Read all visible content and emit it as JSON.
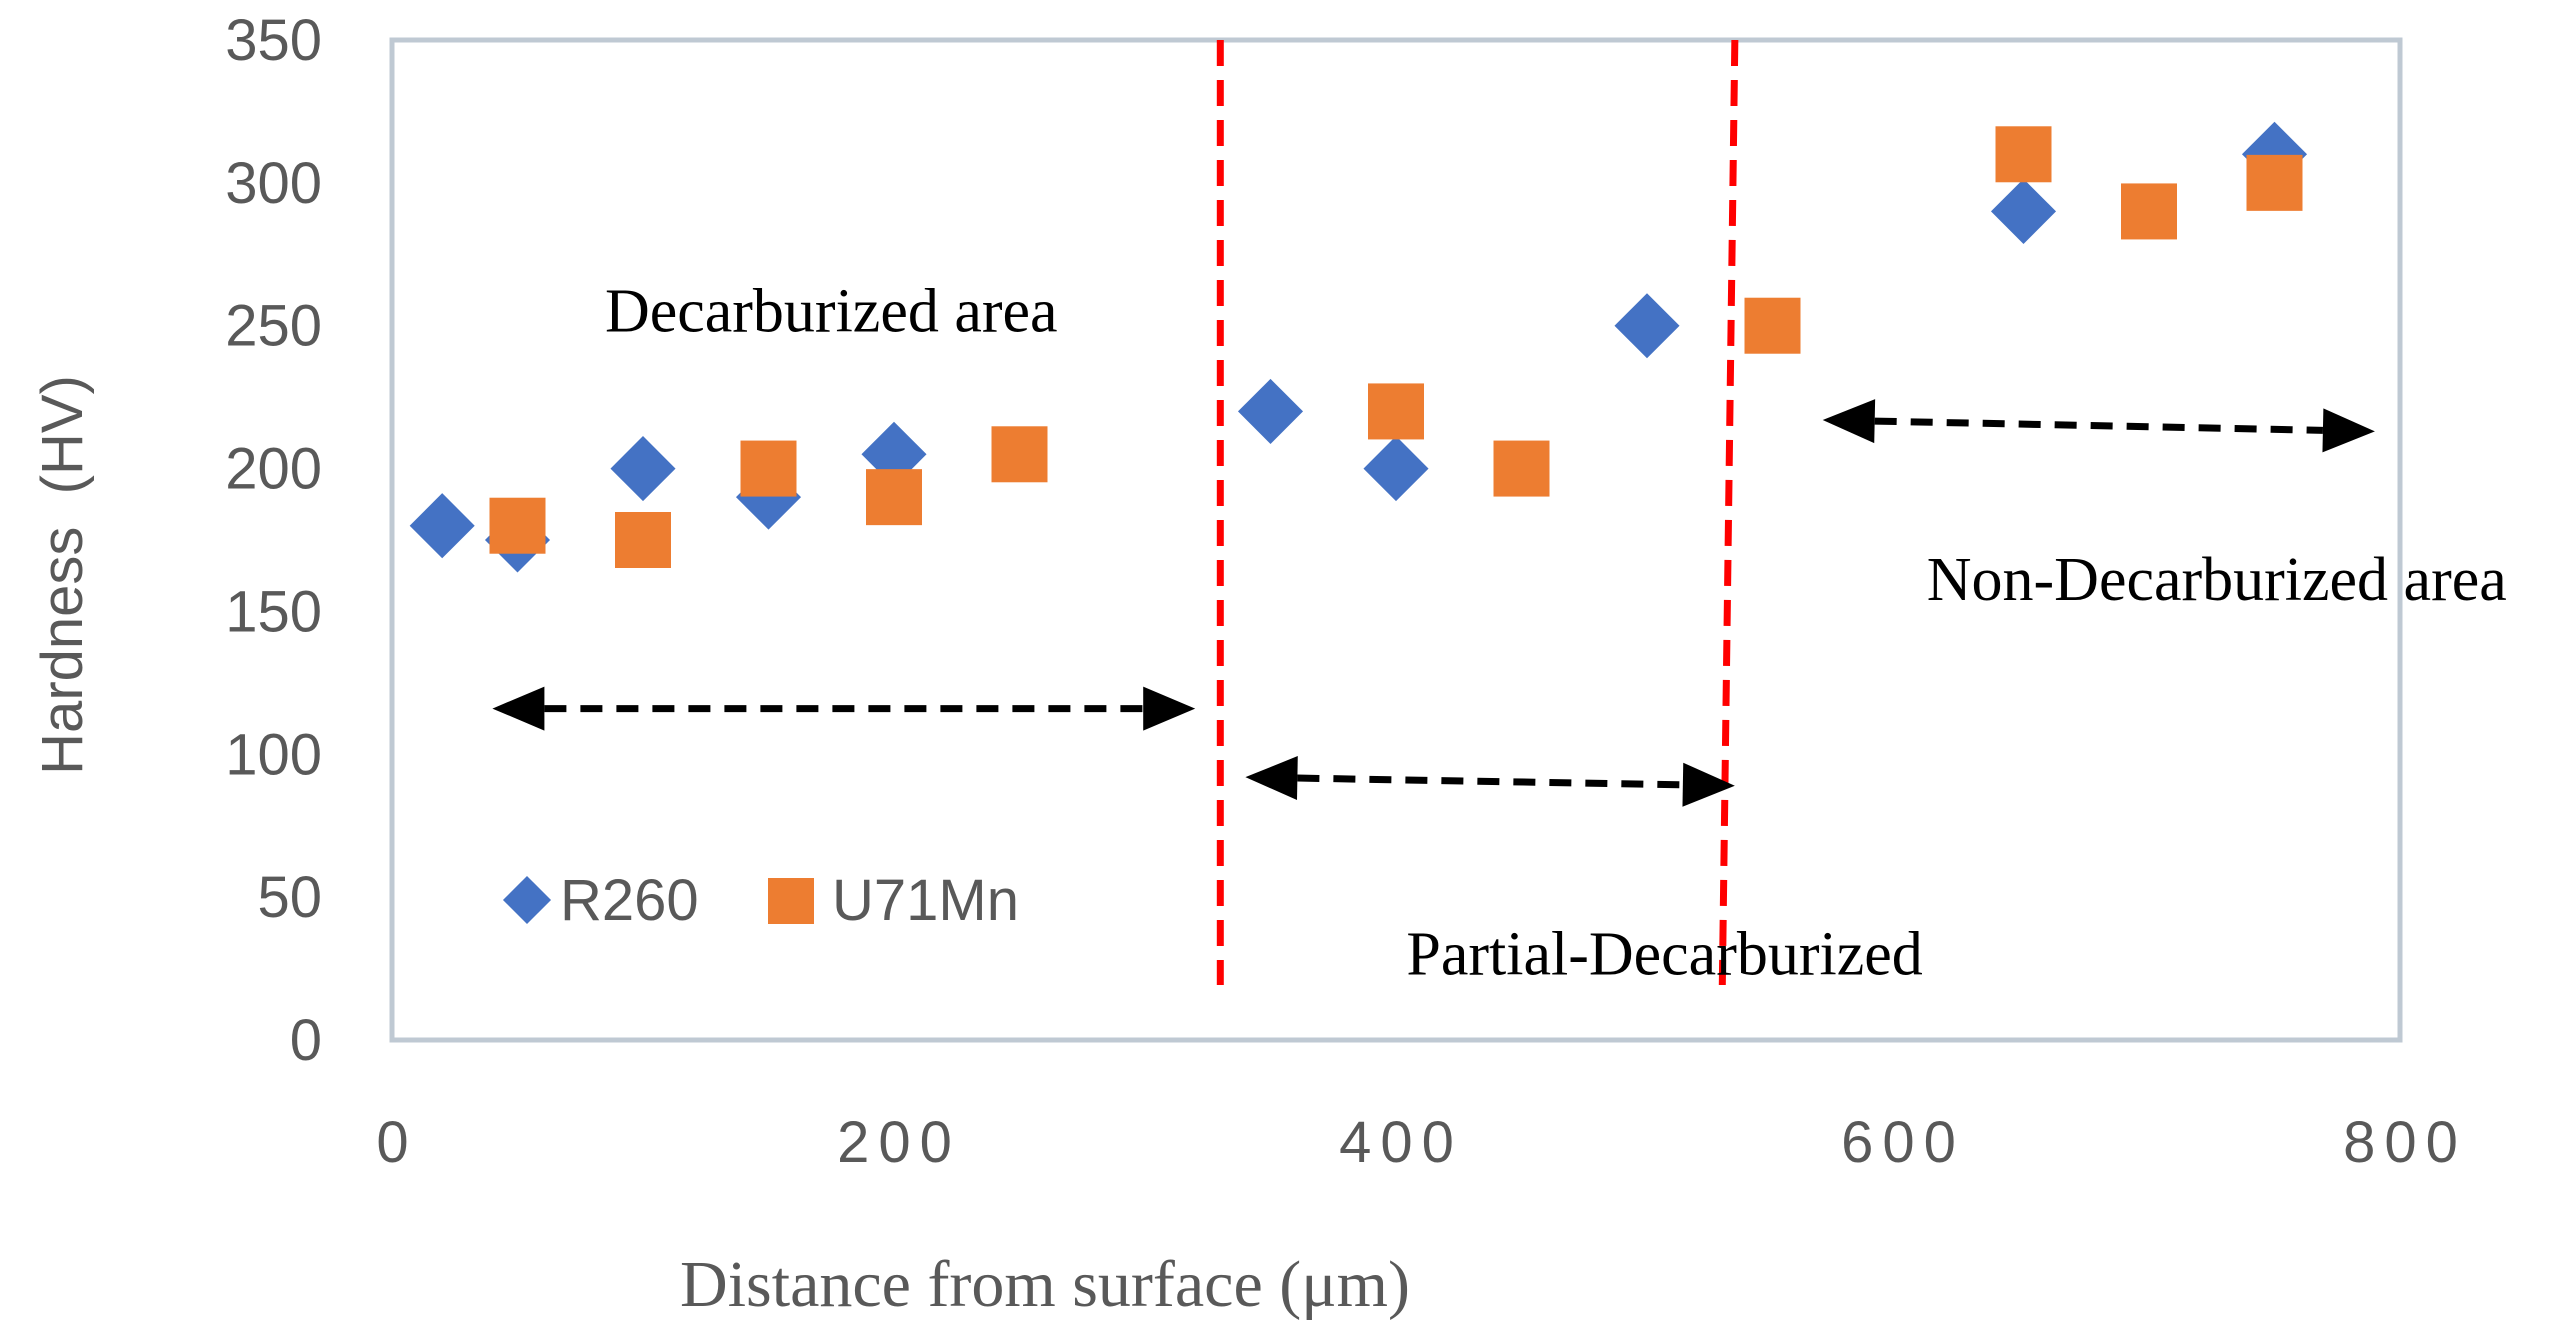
{
  "chart_data": {
    "type": "scatter",
    "title": "",
    "xlabel": "Distance from surface (μm)",
    "ylabel": "Hardness  (HV)",
    "xlim": [
      0,
      800
    ],
    "ylim": [
      0,
      350
    ],
    "x_ticks": [
      "0",
      "200",
      "400",
      "600",
      "800"
    ],
    "y_ticks": [
      "0",
      "50",
      "100",
      "150",
      "200",
      "250",
      "300",
      "350"
    ],
    "grid": false,
    "legend_position": "bottom-left",
    "series": [
      {
        "name": "R260",
        "marker": "diamond",
        "color": "#4472C4",
        "points": [
          {
            "x": 20,
            "y": 180
          },
          {
            "x": 50,
            "y": 175
          },
          {
            "x": 100,
            "y": 200
          },
          {
            "x": 150,
            "y": 190
          },
          {
            "x": 200,
            "y": 205
          },
          {
            "x": 350,
            "y": 220
          },
          {
            "x": 400,
            "y": 200
          },
          {
            "x": 500,
            "y": 250
          },
          {
            "x": 650,
            "y": 290
          },
          {
            "x": 750,
            "y": 310
          }
        ]
      },
      {
        "name": "U71Mn",
        "marker": "square",
        "color": "#ED7D31",
        "points": [
          {
            "x": 50,
            "y": 180
          },
          {
            "x": 100,
            "y": 175
          },
          {
            "x": 150,
            "y": 200
          },
          {
            "x": 200,
            "y": 190
          },
          {
            "x": 250,
            "y": 205
          },
          {
            "x": 400,
            "y": 220
          },
          {
            "x": 450,
            "y": 200
          },
          {
            "x": 550,
            "y": 250
          },
          {
            "x": 650,
            "y": 310
          },
          {
            "x": 700,
            "y": 290
          },
          {
            "x": 750,
            "y": 300
          }
        ]
      }
    ],
    "boundaries": [
      {
        "x_top": 330,
        "x_bottom": 330,
        "color": "#FF0000"
      },
      {
        "x_top": 535,
        "x_bottom": 530,
        "color": "#FF0000"
      }
    ],
    "range_arrows": [
      {
        "x_from": 40,
        "x_to": 320,
        "y_from": 116,
        "y_to": 116
      },
      {
        "x_from": 340,
        "x_to": 535,
        "y_from": 92,
        "y_to": 89
      },
      {
        "x_from": 570,
        "x_to": 790,
        "y_from": 217,
        "y_to": 213
      }
    ],
    "annotations": [
      {
        "text": "Decarburized area",
        "x": 175,
        "y": 255
      },
      {
        "text": "Partial-Decarburized",
        "x": 507,
        "y": 30
      },
      {
        "text": "Non-Decarburized area",
        "x": 727,
        "y": 161
      }
    ]
  }
}
